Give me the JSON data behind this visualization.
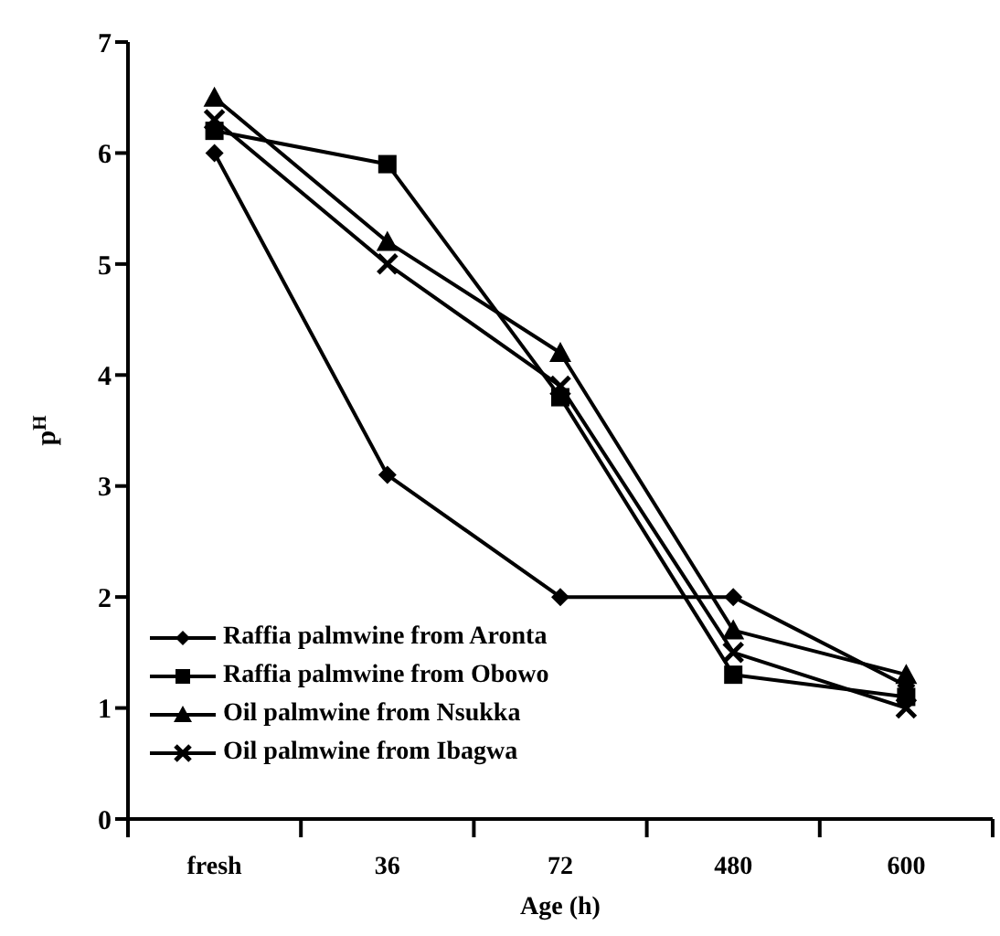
{
  "chart_data": {
    "type": "line",
    "xlabel": "Age (h)",
    "ylabel": "p$^{H}$",
    "categories": [
      "fresh",
      "36",
      "72",
      "480",
      "600"
    ],
    "ylim": [
      0,
      7
    ],
    "yticks": [
      0,
      1,
      2,
      3,
      4,
      5,
      6,
      7
    ],
    "grid": false,
    "legend": "bottom left",
    "line_style": "solid",
    "series": [
      {
        "name": "Raffia palmwine from Aronta",
        "color": "#000000",
        "marker": "diamond",
        "values": [
          6.0,
          3.1,
          2.0,
          2.0,
          1.2
        ]
      },
      {
        "name": "Raffia palmwine from Obowo",
        "color": "#000000",
        "marker": "square",
        "values": [
          6.2,
          5.9,
          3.8,
          1.3,
          1.1
        ]
      },
      {
        "name": "Oil palmwine from Nsukka",
        "color": "#000000",
        "marker": "triangle",
        "values": [
          6.5,
          5.2,
          4.2,
          1.7,
          1.3
        ]
      },
      {
        "name": "Oil palmwine from Ibagwa",
        "color": "#000000",
        "marker": "cross",
        "values": [
          6.3,
          5.0,
          3.9,
          1.5,
          1.0
        ]
      }
    ]
  }
}
